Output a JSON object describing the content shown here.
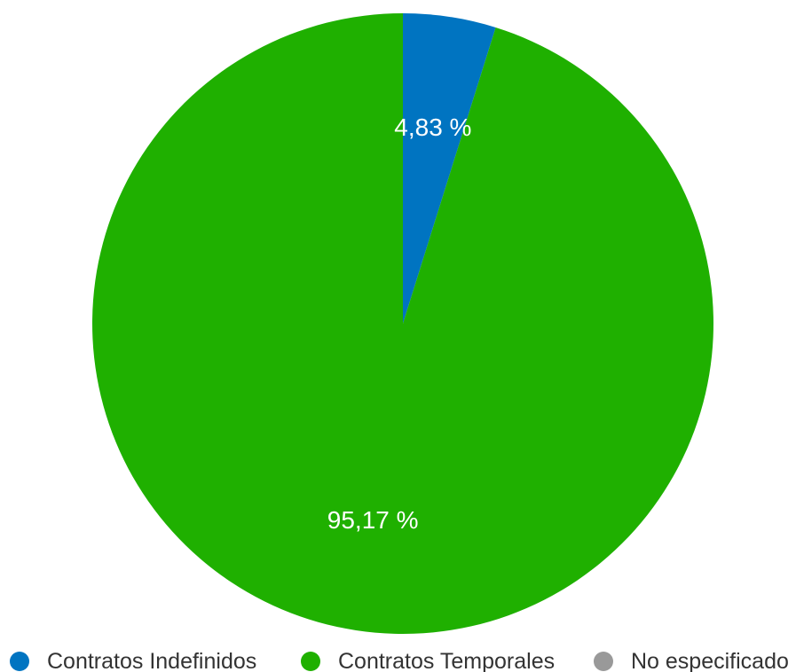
{
  "chart_data": {
    "type": "pie",
    "title": "",
    "slices": [
      {
        "label": "Contratos Indefinidos",
        "value": 4.83,
        "display": "4,83 %",
        "color": "#0074c1"
      },
      {
        "label": "Contratos Temporales",
        "value": 95.17,
        "display": "95,17 %",
        "color": "#1fb000"
      },
      {
        "label": "No especificado",
        "value": 0,
        "display": "",
        "color": "#999999"
      }
    ],
    "legend_position": "bottom"
  }
}
